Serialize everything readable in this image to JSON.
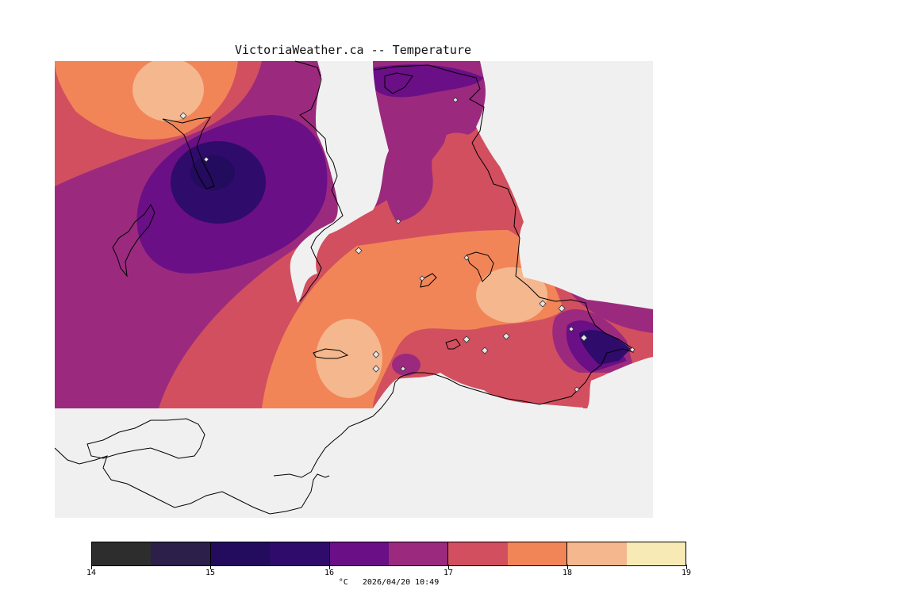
{
  "header": {
    "title": "VictoriaWeather.ca -- Temperature"
  },
  "legend": {
    "unit": "°C",
    "timestamp": "2026/04/20 10:49",
    "bins": [
      {
        "min": 14.0,
        "max": 14.5,
        "color": "#2d2d2d"
      },
      {
        "min": 14.5,
        "max": 15.0,
        "color": "#2c1f4a"
      },
      {
        "min": 15.0,
        "max": 15.5,
        "color": "#230b5e"
      },
      {
        "min": 15.5,
        "max": 16.0,
        "color": "#2f0b6b"
      },
      {
        "min": 16.0,
        "max": 16.5,
        "color": "#6a0f86"
      },
      {
        "min": 16.5,
        "max": 17.0,
        "color": "#9b2a7e"
      },
      {
        "min": 17.0,
        "max": 17.5,
        "color": "#d24f5f"
      },
      {
        "min": 17.5,
        "max": 18.0,
        "color": "#f18558"
      },
      {
        "min": 18.0,
        "max": 18.5,
        "color": "#f4b78e"
      },
      {
        "min": 18.5,
        "max": 19.0,
        "color": "#f7eab4"
      }
    ],
    "tick_labels": [
      "14",
      "15",
      "16",
      "17",
      "18",
      "19"
    ]
  },
  "colors": {
    "background": "#ffffff",
    "no_data": "#f0f0f0",
    "land_outline": "#000000",
    "station_marker": "#e6e6e6"
  },
  "stations": [
    {
      "label": "",
      "value": 18.2
    },
    {
      "label": "",
      "value": 15.4
    },
    {
      "label": "",
      "value": 16.8
    },
    {
      "label": "",
      "value": 17.6
    },
    {
      "label": "",
      "value": 17.4
    },
    {
      "label": "",
      "value": 18.1
    },
    {
      "label": "",
      "value": 17.9
    },
    {
      "label": "",
      "value": 18.3
    },
    {
      "label": "",
      "value": 18.2
    },
    {
      "label": "",
      "value": 16.6
    },
    {
      "label": "",
      "value": 17.4
    },
    {
      "label": "",
      "value": 17.2
    },
    {
      "label": "",
      "value": 16.9
    },
    {
      "label": "",
      "value": 16.1
    },
    {
      "label": "",
      "value": 16.0
    },
    {
      "label": "",
      "value": 15.6
    },
    {
      "label": "",
      "value": 17.1
    }
  ]
}
